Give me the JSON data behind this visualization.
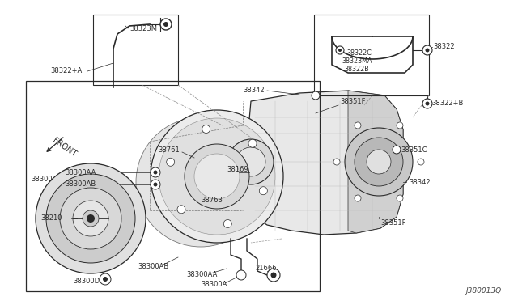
{
  "bg_color": "#ffffff",
  "lc": "#2a2a2a",
  "diagram_id": "J380013Q",
  "figw": 6.4,
  "figh": 3.72,
  "dpi": 100,
  "xlim": [
    0,
    640
  ],
  "ylim": [
    0,
    372
  ]
}
